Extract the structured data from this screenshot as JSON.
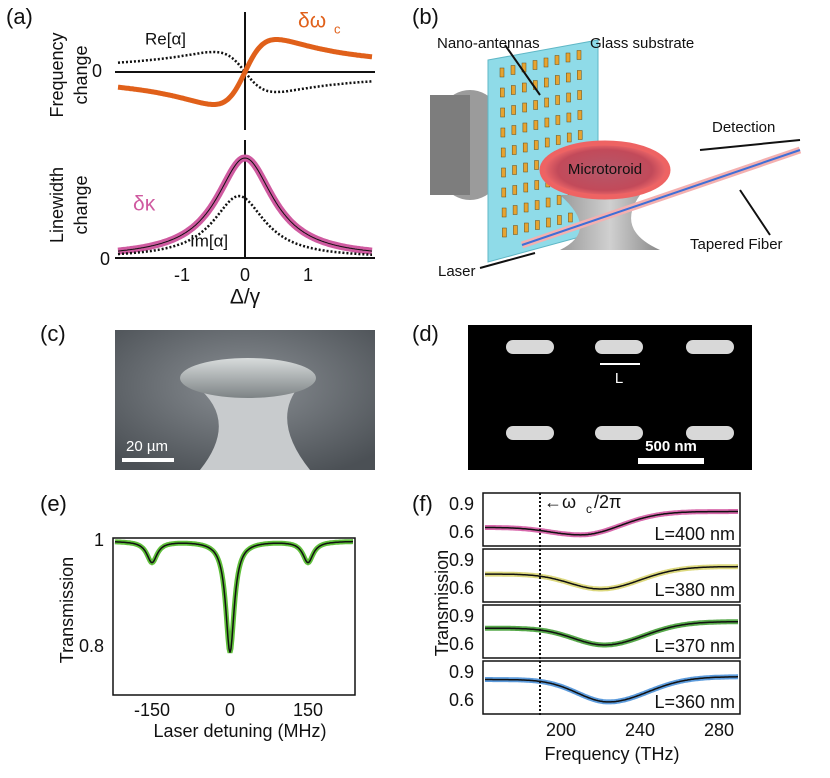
{
  "a": {
    "label": "(a)",
    "top_ylabel": [
      "Frequency",
      "change"
    ],
    "bottom_ylabel": [
      "Linewidth",
      "change"
    ],
    "top_zero": "0",
    "bottom_zero": "0",
    "re": "Re[α]",
    "dw": "δω",
    "dw_sub": "c",
    "dk": "δκ",
    "im": "Im[α]",
    "xticks": [
      "-1",
      "0",
      "1"
    ],
    "xlabel": "Δ/γ"
  },
  "b": {
    "label": "(b)",
    "nano": "Nano-antennas",
    "glass": "Glass substrate",
    "detection": "Detection",
    "toroid": "Microtoroid",
    "fiber": "Tapered Fiber",
    "laser": "Laser"
  },
  "c": {
    "label": "(c)",
    "scale": "20 µm"
  },
  "d": {
    "label": "(d)",
    "length": "L",
    "scale": "500 nm"
  },
  "e": {
    "label": "(e)",
    "ylabel": "Transmission",
    "yticks": [
      "1",
      "0.8"
    ],
    "xticks": [
      "-150",
      "0",
      "150"
    ],
    "xlabel": "Laser detuning (MHz)"
  },
  "f": {
    "label": "(f)",
    "ylabel": "Transmission",
    "annotation": "←ω",
    "annotation_sub": "c",
    "annotation_tail": "/2π",
    "panels": [
      {
        "yticks": [
          "0.9",
          "0.6"
        ],
        "legend": "L=400 nm"
      },
      {
        "yticks": [
          "0.9",
          "0.6"
        ],
        "legend": "L=380 nm"
      },
      {
        "yticks": [
          "0.9",
          "0.6"
        ],
        "legend": "L=370 nm"
      },
      {
        "yticks": [
          "0.9",
          "0.6"
        ],
        "legend": "L=360 nm"
      }
    ],
    "xticks": [
      "200",
      "240",
      "280"
    ],
    "xlabel": "Frequency (THz)"
  }
}
